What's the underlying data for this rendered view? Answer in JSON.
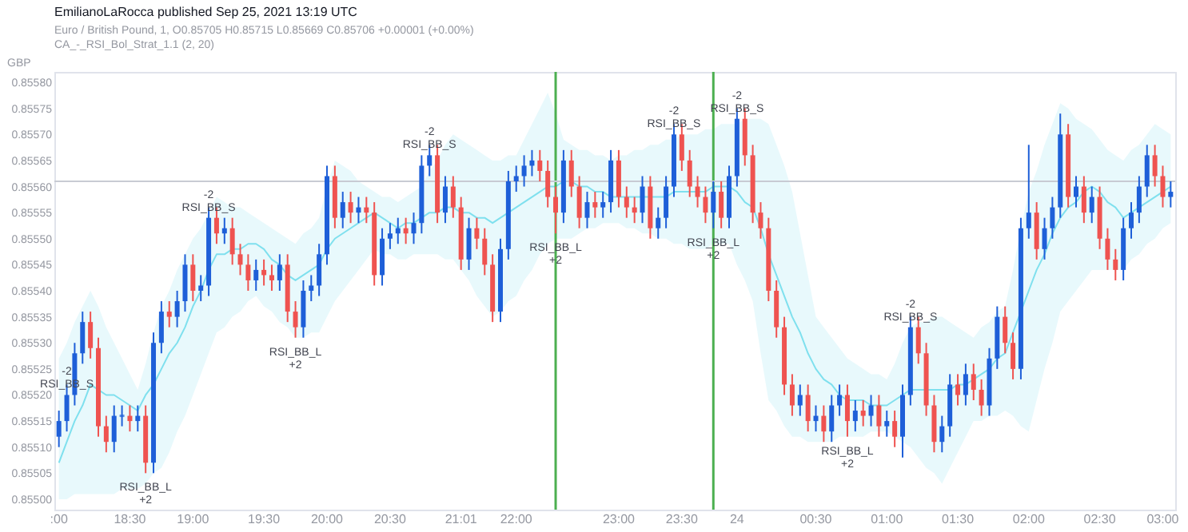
{
  "chart_data": {
    "type": "candlestick",
    "title": "EmilianoLaRocca published Sep 25, 2021 13:19 UTC",
    "subtitle": "Euro / British Pound, 1, O0.85705 H0.85715 L0.85669 C0.85706 +0.00001 (+0.00%)",
    "ylabel": "GBP",
    "categories": [
      ":00",
      null,
      null,
      null,
      null,
      null,
      null,
      null,
      null,
      "18:30",
      null,
      null,
      null,
      null,
      null,
      null,
      null,
      "19:00",
      null,
      null,
      null,
      null,
      null,
      null,
      null,
      null,
      "19:30",
      null,
      null,
      null,
      null,
      null,
      null,
      null,
      "20:00",
      null,
      null,
      null,
      null,
      null,
      null,
      null,
      "20:30",
      null,
      null,
      null,
      null,
      null,
      null,
      null,
      null,
      "21:01",
      null,
      null,
      null,
      null,
      null,
      null,
      "22:00",
      null,
      null,
      null,
      null,
      null,
      null,
      null,
      null,
      null,
      null,
      null,
      null,
      "23:00",
      null,
      null,
      null,
      null,
      null,
      null,
      null,
      "23:30",
      null,
      null,
      null,
      null,
      null,
      null,
      "24",
      null,
      null,
      null,
      null,
      null,
      null,
      null,
      null,
      null,
      "00:30",
      null,
      null,
      null,
      null,
      null,
      null,
      null,
      null,
      "01:00",
      null,
      null,
      null,
      null,
      null,
      null,
      null,
      null,
      "01:30",
      null,
      null,
      null,
      null,
      null,
      null,
      null,
      null,
      "02:00",
      null,
      null,
      null,
      null,
      null,
      null,
      null,
      null,
      "02:30",
      null,
      null,
      null,
      null,
      null,
      null,
      null,
      "03:00",
      null
    ],
    "ohlc": [
      [
        0.85512,
        0.85517,
        0.8551,
        0.85515
      ],
      [
        0.85515,
        0.85522,
        0.85513,
        0.8552
      ],
      [
        0.8552,
        0.8553,
        0.85518,
        0.85528
      ],
      [
        0.85528,
        0.85536,
        0.85526,
        0.85534
      ],
      [
        0.85534,
        0.85536,
        0.85527,
        0.85529
      ],
      [
        0.85529,
        0.85531,
        0.85512,
        0.85514
      ],
      [
        0.85514,
        0.85516,
        0.85509,
        0.85511
      ],
      [
        0.85511,
        0.85518,
        0.85509,
        0.85516
      ],
      [
        0.85516,
        0.85518,
        0.85514,
        0.85516
      ],
      [
        0.85516,
        0.85518,
        0.85513,
        0.85515
      ],
      [
        0.85515,
        0.85518,
        0.85513,
        0.85516
      ],
      [
        0.85516,
        0.85518,
        0.85505,
        0.85507
      ],
      [
        0.85507,
        0.85532,
        0.85505,
        0.8553
      ],
      [
        0.8553,
        0.85538,
        0.85528,
        0.85536
      ],
      [
        0.85536,
        0.85538,
        0.85533,
        0.85535
      ],
      [
        0.85535,
        0.8554,
        0.85533,
        0.85538
      ],
      [
        0.85538,
        0.85547,
        0.85536,
        0.85545
      ],
      [
        0.85545,
        0.85547,
        0.85538,
        0.8554
      ],
      [
        0.8554,
        0.85543,
        0.85538,
        0.85541
      ],
      [
        0.85541,
        0.85556,
        0.85539,
        0.85554
      ],
      [
        0.85554,
        0.85556,
        0.85549,
        0.85551
      ],
      [
        0.85551,
        0.85554,
        0.85549,
        0.85552
      ],
      [
        0.85552,
        0.85554,
        0.85545,
        0.85547
      ],
      [
        0.85547,
        0.85549,
        0.85543,
        0.85545
      ],
      [
        0.85545,
        0.85547,
        0.8554,
        0.85542
      ],
      [
        0.85542,
        0.85546,
        0.8554,
        0.85544
      ],
      [
        0.85544,
        0.85546,
        0.85541,
        0.85543
      ],
      [
        0.85543,
        0.85545,
        0.8554,
        0.85542
      ],
      [
        0.85542,
        0.85547,
        0.8554,
        0.85545
      ],
      [
        0.85545,
        0.85547,
        0.85534,
        0.85536
      ],
      [
        0.85536,
        0.85538,
        0.85531,
        0.85533
      ],
      [
        0.85533,
        0.85542,
        0.85531,
        0.8554
      ],
      [
        0.8554,
        0.85543,
        0.85538,
        0.85541
      ],
      [
        0.85541,
        0.85549,
        0.85539,
        0.85547
      ],
      [
        0.85547,
        0.85564,
        0.85545,
        0.85562
      ],
      [
        0.85562,
        0.85564,
        0.85552,
        0.85554
      ],
      [
        0.85554,
        0.85559,
        0.85552,
        0.85557
      ],
      [
        0.85557,
        0.85559,
        0.85553,
        0.85555
      ],
      [
        0.85555,
        0.85558,
        0.85553,
        0.85556
      ],
      [
        0.85556,
        0.85558,
        0.85553,
        0.85555
      ],
      [
        0.85555,
        0.85557,
        0.85541,
        0.85543
      ],
      [
        0.85543,
        0.85552,
        0.85541,
        0.8555
      ],
      [
        0.8555,
        0.85553,
        0.85548,
        0.85551
      ],
      [
        0.85551,
        0.85554,
        0.85549,
        0.85552
      ],
      [
        0.85552,
        0.85554,
        0.85549,
        0.85551
      ],
      [
        0.85551,
        0.85555,
        0.85549,
        0.85553
      ],
      [
        0.85553,
        0.85566,
        0.85551,
        0.85564
      ],
      [
        0.85564,
        0.85568,
        0.85562,
        0.85566
      ],
      [
        0.85566,
        0.85568,
        0.85553,
        0.85555
      ],
      [
        0.85555,
        0.85562,
        0.85553,
        0.8556
      ],
      [
        0.8556,
        0.85562,
        0.85554,
        0.85556
      ],
      [
        0.85556,
        0.85558,
        0.85544,
        0.85546
      ],
      [
        0.85546,
        0.85554,
        0.85544,
        0.85552
      ],
      [
        0.85552,
        0.85554,
        0.85548,
        0.8555
      ],
      [
        0.8555,
        0.85552,
        0.85543,
        0.85545
      ],
      [
        0.85545,
        0.85547,
        0.85534,
        0.85536
      ],
      [
        0.85536,
        0.8555,
        0.85534,
        0.85548
      ],
      [
        0.85548,
        0.85563,
        0.85546,
        0.85561
      ],
      [
        0.85561,
        0.85564,
        0.85559,
        0.85562
      ],
      [
        0.85562,
        0.85566,
        0.8556,
        0.85564
      ],
      [
        0.85564,
        0.85567,
        0.85562,
        0.85565
      ],
      [
        0.85565,
        0.85567,
        0.85561,
        0.85563
      ],
      [
        0.85563,
        0.85565,
        0.85556,
        0.85558
      ],
      [
        0.85558,
        0.8556,
        0.85551,
        0.85555
      ],
      [
        0.85555,
        0.85567,
        0.85553,
        0.85565
      ],
      [
        0.85565,
        0.85567,
        0.85558,
        0.8556
      ],
      [
        0.8556,
        0.85562,
        0.85552,
        0.85554
      ],
      [
        0.85554,
        0.85559,
        0.85552,
        0.85557
      ],
      [
        0.85557,
        0.85559,
        0.85554,
        0.85556
      ],
      [
        0.85556,
        0.85559,
        0.85554,
        0.85557
      ],
      [
        0.85557,
        0.85567,
        0.85555,
        0.85565
      ],
      [
        0.85565,
        0.85567,
        0.85556,
        0.85558
      ],
      [
        0.85558,
        0.8556,
        0.85554,
        0.85556
      ],
      [
        0.85556,
        0.85558,
        0.85553,
        0.85555
      ],
      [
        0.85555,
        0.85562,
        0.85553,
        0.8556
      ],
      [
        0.8556,
        0.85562,
        0.8555,
        0.85552
      ],
      [
        0.85552,
        0.85556,
        0.8555,
        0.85554
      ],
      [
        0.85554,
        0.85562,
        0.85552,
        0.8556
      ],
      [
        0.8556,
        0.85572,
        0.85558,
        0.8557
      ],
      [
        0.8557,
        0.85572,
        0.85563,
        0.85565
      ],
      [
        0.85565,
        0.85567,
        0.85558,
        0.8556
      ],
      [
        0.8556,
        0.85562,
        0.85556,
        0.85558
      ],
      [
        0.85558,
        0.8556,
        0.85553,
        0.85555
      ],
      [
        0.85555,
        0.85561,
        0.85552,
        0.85559
      ],
      [
        0.85559,
        0.85561,
        0.85552,
        0.85554
      ],
      [
        0.85554,
        0.85564,
        0.85552,
        0.85562
      ],
      [
        0.85562,
        0.85575,
        0.8556,
        0.85573
      ],
      [
        0.85573,
        0.85575,
        0.85564,
        0.85566
      ],
      [
        0.85566,
        0.85568,
        0.85553,
        0.85555
      ],
      [
        0.85555,
        0.85557,
        0.8555,
        0.85552
      ],
      [
        0.85552,
        0.85554,
        0.85538,
        0.8554
      ],
      [
        0.8554,
        0.85542,
        0.85531,
        0.85533
      ],
      [
        0.85533,
        0.85535,
        0.8552,
        0.85522
      ],
      [
        0.85522,
        0.85524,
        0.85516,
        0.85518
      ],
      [
        0.85518,
        0.85522,
        0.85516,
        0.8552
      ],
      [
        0.8552,
        0.85522,
        0.85513,
        0.85515
      ],
      [
        0.85515,
        0.85518,
        0.85513,
        0.85516
      ],
      [
        0.85516,
        0.85518,
        0.85511,
        0.85513
      ],
      [
        0.85513,
        0.8552,
        0.85511,
        0.85518
      ],
      [
        0.85518,
        0.85522,
        0.85516,
        0.8552
      ],
      [
        0.8552,
        0.85522,
        0.85512,
        0.85515
      ],
      [
        0.85515,
        0.85519,
        0.85513,
        0.85517
      ],
      [
        0.85517,
        0.85519,
        0.85514,
        0.85516
      ],
      [
        0.85516,
        0.8552,
        0.85514,
        0.85518
      ],
      [
        0.85518,
        0.8552,
        0.85512,
        0.85514
      ],
      [
        0.85514,
        0.85517,
        0.85512,
        0.85515
      ],
      [
        0.85515,
        0.85517,
        0.8551,
        0.85512
      ],
      [
        0.85512,
        0.85522,
        0.85508,
        0.8552
      ],
      [
        0.8552,
        0.85535,
        0.85518,
        0.85533
      ],
      [
        0.85533,
        0.85535,
        0.85526,
        0.85528
      ],
      [
        0.85528,
        0.8553,
        0.85516,
        0.85518
      ],
      [
        0.85518,
        0.8552,
        0.85509,
        0.85511
      ],
      [
        0.85511,
        0.85516,
        0.85509,
        0.85514
      ],
      [
        0.85514,
        0.85524,
        0.85512,
        0.85522
      ],
      [
        0.85522,
        0.85524,
        0.85518,
        0.8552
      ],
      [
        0.8552,
        0.85526,
        0.85518,
        0.85524
      ],
      [
        0.85524,
        0.85526,
        0.85519,
        0.85521
      ],
      [
        0.85521,
        0.85523,
        0.85516,
        0.85518
      ],
      [
        0.85518,
        0.85529,
        0.85516,
        0.85527
      ],
      [
        0.85527,
        0.85537,
        0.85525,
        0.85535
      ],
      [
        0.85535,
        0.85537,
        0.85528,
        0.8553
      ],
      [
        0.8553,
        0.85532,
        0.85523,
        0.85525
      ],
      [
        0.85525,
        0.85554,
        0.85523,
        0.85552
      ],
      [
        0.85552,
        0.85568,
        0.8555,
        0.85555
      ],
      [
        0.85555,
        0.85557,
        0.85546,
        0.85548
      ],
      [
        0.85548,
        0.85554,
        0.85546,
        0.85552
      ],
      [
        0.85552,
        0.85558,
        0.8555,
        0.85556
      ],
      [
        0.85556,
        0.85574,
        0.85554,
        0.8557
      ],
      [
        0.8557,
        0.85572,
        0.85556,
        0.85558
      ],
      [
        0.85558,
        0.85562,
        0.85556,
        0.8556
      ],
      [
        0.8556,
        0.85562,
        0.85553,
        0.85555
      ],
      [
        0.85555,
        0.8556,
        0.85553,
        0.85558
      ],
      [
        0.85558,
        0.8556,
        0.85548,
        0.8555
      ],
      [
        0.8555,
        0.85552,
        0.85544,
        0.85546
      ],
      [
        0.85546,
        0.85548,
        0.85542,
        0.85544
      ],
      [
        0.85544,
        0.85554,
        0.85542,
        0.85552
      ],
      [
        0.85552,
        0.85557,
        0.8555,
        0.85555
      ],
      [
        0.85555,
        0.85562,
        0.85553,
        0.8556
      ],
      [
        0.8556,
        0.85568,
        0.85558,
        0.85566
      ],
      [
        0.85566,
        0.85568,
        0.8556,
        0.85562
      ],
      [
        0.85562,
        0.85564,
        0.85556,
        0.85558
      ],
      [
        0.85558,
        0.85561,
        0.85556,
        0.85559
      ]
    ],
    "series": [
      {
        "type": "line",
        "color": "#7fe0ee",
        "values": [
          0.85507,
          0.85511,
          0.85515,
          0.85518,
          0.85522,
          0.85521,
          0.8552,
          0.8552,
          0.85519,
          0.85518,
          0.85517,
          0.8552,
          0.85522,
          0.85525,
          0.85528,
          0.8553,
          0.85533,
          0.85537,
          0.8554,
          0.85544,
          0.85547,
          0.85547,
          0.85548,
          0.85548,
          0.85549,
          0.85549,
          0.85548,
          0.85546,
          0.85545,
          0.85543,
          0.85542,
          0.85543,
          0.85544,
          0.85545,
          0.85548,
          0.8555,
          0.85551,
          0.85552,
          0.85553,
          0.85554,
          0.85555,
          0.85554,
          0.85553,
          0.85552,
          0.85553,
          0.85553,
          0.85554,
          0.85555,
          0.85555,
          0.85556,
          0.85556,
          0.85555,
          0.85555,
          0.85554,
          0.85554,
          0.85553,
          0.85554,
          0.85555,
          0.85556,
          0.85557,
          0.85558,
          0.85559,
          0.8556,
          0.8556,
          0.85561,
          0.85561,
          0.8556,
          0.8556,
          0.85559,
          0.85559,
          0.85558,
          0.85558,
          0.85558,
          0.85558,
          0.85558,
          0.85558,
          0.85558,
          0.85558,
          0.85559,
          0.85559,
          0.85559,
          0.85559,
          0.85559,
          0.8556,
          0.8556,
          0.8556,
          0.85559,
          0.85557,
          0.85556,
          0.85552,
          0.85547,
          0.85543,
          0.85539,
          0.85535,
          0.85532,
          0.85528,
          0.85525,
          0.85523,
          0.85522,
          0.8552,
          0.85519,
          0.85519,
          0.85519,
          0.85518,
          0.85518,
          0.85518,
          0.85519,
          0.8552,
          0.85521,
          0.85521,
          0.85521,
          0.85521,
          0.85521,
          0.85521,
          0.85522,
          0.85522,
          0.85523,
          0.85524,
          0.85525,
          0.85527,
          0.85528,
          0.85532,
          0.85536,
          0.8554,
          0.85544,
          0.85547,
          0.85551,
          0.85554,
          0.85556,
          0.85557,
          0.85559,
          0.8556,
          0.85559,
          0.85557,
          0.85556,
          0.85554,
          0.85555,
          0.85556,
          0.85557,
          0.85558,
          0.85559,
          0.8556
        ],
        "lower": [
          0.855,
          0.855,
          0.85501,
          0.85501,
          0.85501,
          0.85501,
          0.85501,
          0.85501,
          0.85502,
          0.85502,
          0.85502,
          0.85503,
          0.85505,
          0.85506,
          0.85509,
          0.85513,
          0.85516,
          0.8552,
          0.85524,
          0.85528,
          0.85532,
          0.85533,
          0.85535,
          0.85536,
          0.85538,
          0.85539,
          0.85537,
          0.85536,
          0.85534,
          0.85533,
          0.85531,
          0.85531,
          0.85532,
          0.85532,
          0.85535,
          0.85538,
          0.8554,
          0.85542,
          0.85544,
          0.85546,
          0.85548,
          0.85547,
          0.85547,
          0.85546,
          0.85546,
          0.85547,
          0.85547,
          0.85547,
          0.85547,
          0.85546,
          0.85546,
          0.85544,
          0.85542,
          0.85539,
          0.85537,
          0.85535,
          0.85536,
          0.85538,
          0.85539,
          0.85542,
          0.85544,
          0.85547,
          0.85549,
          0.8555,
          0.8555,
          0.8555,
          0.85551,
          0.85552,
          0.85552,
          0.85553,
          0.85553,
          0.85553,
          0.85552,
          0.85552,
          0.85551,
          0.85551,
          0.8555,
          0.8555,
          0.85549,
          0.85549,
          0.85548,
          0.85548,
          0.85548,
          0.85549,
          0.85549,
          0.85549,
          0.85545,
          0.85542,
          0.85538,
          0.85528,
          0.85519,
          0.85517,
          0.85514,
          0.85512,
          0.85512,
          0.85511,
          0.85511,
          0.85511,
          0.85511,
          0.85512,
          0.85512,
          0.85512,
          0.85512,
          0.85513,
          0.85513,
          0.85513,
          0.85512,
          0.85511,
          0.8551,
          0.85508,
          0.85506,
          0.85505,
          0.85503,
          0.85506,
          0.85509,
          0.85512,
          0.85515,
          0.85515,
          0.85516,
          0.85516,
          0.85517,
          0.85516,
          0.85514,
          0.85513,
          0.85519,
          0.85525,
          0.8553,
          0.85536,
          0.85538,
          0.8554,
          0.85542,
          0.85544,
          0.85544,
          0.85544,
          0.85544,
          0.85544,
          0.85546,
          0.85547,
          0.85549,
          0.8555,
          0.85552,
          0.85553
        ],
        "upper": [
          0.85527,
          0.8553,
          0.85534,
          0.85537,
          0.8554,
          0.85537,
          0.85533,
          0.8553,
          0.85527,
          0.85524,
          0.85521,
          0.85526,
          0.85532,
          0.85537,
          0.8554,
          0.85544,
          0.85547,
          0.8555,
          0.85552,
          0.85555,
          0.85558,
          0.85557,
          0.85556,
          0.85556,
          0.85555,
          0.85554,
          0.85553,
          0.85552,
          0.85551,
          0.8555,
          0.85549,
          0.85551,
          0.85552,
          0.85554,
          0.8556,
          0.85565,
          0.85564,
          0.85563,
          0.85561,
          0.8556,
          0.85559,
          0.85558,
          0.85558,
          0.85557,
          0.85558,
          0.85559,
          0.8556,
          0.85563,
          0.85565,
          0.85568,
          0.8557,
          0.85569,
          0.85568,
          0.85567,
          0.85566,
          0.85565,
          0.85565,
          0.85566,
          0.85566,
          0.85569,
          0.85572,
          0.85575,
          0.85578,
          0.85574,
          0.85569,
          0.85568,
          0.85567,
          0.85567,
          0.85566,
          0.85566,
          0.85565,
          0.85566,
          0.85566,
          0.85567,
          0.85567,
          0.85568,
          0.85568,
          0.85569,
          0.85569,
          0.8557,
          0.8557,
          0.8557,
          0.85571,
          0.85571,
          0.85572,
          0.85572,
          0.85572,
          0.85573,
          0.85573,
          0.85573,
          0.85572,
          0.85568,
          0.85564,
          0.85559,
          0.85551,
          0.85543,
          0.85535,
          0.85533,
          0.85531,
          0.85529,
          0.85527,
          0.85526,
          0.85525,
          0.85524,
          0.85524,
          0.85523,
          0.85526,
          0.8553,
          0.85533,
          0.85534,
          0.85534,
          0.85535,
          0.85535,
          0.85534,
          0.85533,
          0.85532,
          0.85531,
          0.85533,
          0.85534,
          0.85536,
          0.85537,
          0.85544,
          0.85552,
          0.85559,
          0.85563,
          0.85568,
          0.85572,
          0.85576,
          0.85575,
          0.85573,
          0.85572,
          0.85571,
          0.85569,
          0.85567,
          0.85566,
          0.85565,
          0.85567,
          0.85568,
          0.8557,
          0.85572,
          0.85571,
          0.8557
        ]
      }
    ],
    "annotations": [
      "CA_-_RSI_Bol_Strat_1.1 (2, 20)",
      {
        "text": "-2\nRSI_BB_S",
        "y": 0.85522
      },
      {
        "text": "RSI_BB_L\n+2",
        "y": 0.85505
      },
      {
        "text": "-2\nRSI_BB_S",
        "y": 0.85556
      },
      {
        "text": "RSI_BB_L\n+2",
        "y": 0.85531
      },
      {
        "text": "-2\nRSI_BB_S",
        "y": 0.85568
      },
      {
        "text": "RSI_BB_L\n+2",
        "y": 0.85551
      },
      {
        "text": "-2\nRSI_BB_S",
        "y": 0.85572
      },
      {
        "text": "RSI_BB_L\n+2",
        "y": 0.85552
      },
      {
        "text": "-2\nRSI_BB_S",
        "y": 0.85575
      },
      {
        "text": "RSI_BB_L\n+2",
        "y": 0.85512
      },
      {
        "text": "-2\nRSI_BB_S",
        "y": 0.85535
      }
    ],
    "ref_lines": [
      {
        "axis": "y",
        "value": 0.85561,
        "color": "#c8cbd3"
      }
    ],
    "ylim": [
      0.85498,
      0.85582
    ],
    "yticks": [
      {
        "value": 0.855,
        "label": "0.85500"
      },
      0.85505,
      {
        "value": 0.8551,
        "label": "0.85510"
      },
      0.85515,
      {
        "value": 0.8552,
        "label": "0.85520"
      },
      0.85525,
      {
        "value": 0.8553,
        "label": "0.85530"
      },
      0.85535,
      {
        "value": 0.8554,
        "label": "0.85540"
      },
      0.85545,
      {
        "value": 0.8555,
        "label": "0.85550"
      },
      0.85555,
      {
        "value": 0.8556,
        "label": "0.85560"
      },
      0.85565,
      {
        "value": 0.8557,
        "label": "0.85570"
      },
      0.85575,
      {
        "value": 0.8558,
        "label": "0.85580"
      }
    ]
  }
}
